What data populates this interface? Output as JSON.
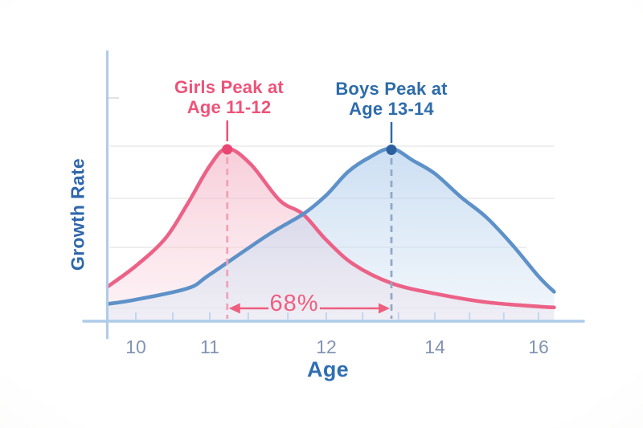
{
  "labels": {
    "girls_peak_line1": "Girls Peak at",
    "girls_peak_line2": "Age 11-12",
    "boys_peak_line1": "Boys Peak at",
    "boys_peak_line2": "Age 13-14",
    "overlap": "68%"
  },
  "colors": {
    "girls_curve": "#EC6287",
    "girls_fill_top": "#F3AFC3",
    "girls_fill_bottom": "#F9DCE5",
    "girls_text": "#EE5278",
    "girls_dot": "#E94772",
    "girls_dashed": "#F2A2B7",
    "boys_curve": "#5E91C8",
    "boys_fill_top": "#A9C9EA",
    "boys_fill_bottom": "#DCE8F5",
    "boys_text": "#2E6CAB",
    "boys_dot": "#2B5F9E",
    "boys_dashed": "#92A9C6",
    "axis": "#AECCE9",
    "tick": "#C2D7EE",
    "tick_label": "#8294B2",
    "grid": "#E5E5E7",
    "grid_faint": "#ECECEE",
    "y_tick": "#D8D8DA",
    "annotation": "#EE5F7F",
    "xlabel_color": "#2E6FB2",
    "ylabel_color": "#2F67AC"
  },
  "chart_data": {
    "type": "area",
    "title": "",
    "xlabel": "Age",
    "ylabel": "Growth Rate",
    "x_tick_labels": [
      "10",
      "11",
      "12",
      "14",
      "16"
    ],
    "x_tick_ages": [
      10,
      11,
      12,
      14,
      16
    ],
    "minor_tick_ages": [
      10.5,
      11.33,
      11.67,
      12.67,
      13.33,
      14.67,
      15.33
    ],
    "grid": true,
    "legend": "none",
    "x_range": [
      9.6,
      16.3
    ],
    "y_range_relative": [
      0,
      1
    ],
    "overlap_percent": 68,
    "annotations": [
      "Girls Peak at Age 11-12",
      "Boys Peak at Age 13-14",
      "68%"
    ],
    "series": [
      {
        "name": "Girls",
        "peak_label": "Girls Peak at Age 11-12",
        "peak_age": 11.15,
        "x": [
          9.62,
          10,
          10.4,
          10.7,
          11,
          11.15,
          11.35,
          11.6,
          11.8,
          12,
          12.5,
          13.2,
          14,
          15,
          16,
          16.3
        ],
        "y": [
          0.2,
          0.32,
          0.48,
          0.68,
          0.9,
          1.0,
          0.91,
          0.7,
          0.62,
          0.47,
          0.33,
          0.22,
          0.16,
          0.11,
          0.085,
          0.08
        ]
      },
      {
        "name": "Boys",
        "peak_label": "Boys Peak at Age 13-14",
        "peak_age": 13.2,
        "x": [
          9.62,
          10,
          10.7,
          11,
          11.5,
          11.8,
          12,
          12.4,
          12.8,
          13.2,
          13.6,
          14,
          14.5,
          15,
          15.5,
          16,
          16.3
        ],
        "y": [
          0.1,
          0.125,
          0.19,
          0.27,
          0.5,
          0.62,
          0.73,
          0.865,
          0.95,
          1.0,
          0.93,
          0.855,
          0.72,
          0.6,
          0.44,
          0.26,
          0.17
        ]
      }
    ]
  }
}
